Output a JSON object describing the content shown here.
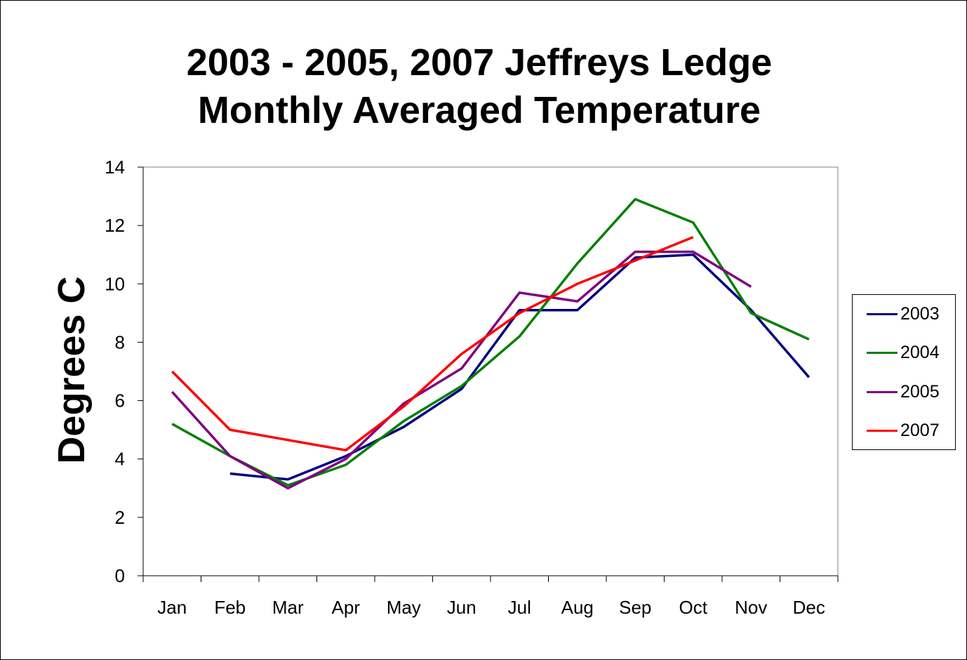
{
  "chart_data": {
    "type": "line",
    "title_line1": "2003 - 2005, 2007 Jeffreys Ledge",
    "title_line2": "Monthly Averaged Temperature",
    "xlabel": "",
    "ylabel": "Degrees C",
    "categories": [
      "Jan",
      "Feb",
      "Mar",
      "Apr",
      "May",
      "Jun",
      "Jul",
      "Aug",
      "Sep",
      "Oct",
      "Nov",
      "Dec"
    ],
    "ylim": [
      0,
      14
    ],
    "yticks": [
      "0",
      "2",
      "4",
      "6",
      "8",
      "10",
      "12",
      "14"
    ],
    "legend_position": "right",
    "series": [
      {
        "name": "2003",
        "color": "#000080",
        "values": [
          null,
          3.5,
          3.3,
          4.1,
          5.1,
          6.4,
          9.1,
          9.1,
          10.9,
          11.0,
          9.1,
          6.8
        ]
      },
      {
        "name": "2004",
        "color": "#008000",
        "values": [
          5.2,
          4.1,
          3.1,
          3.8,
          5.3,
          6.5,
          8.2,
          10.7,
          12.9,
          12.1,
          9.0,
          8.1
        ]
      },
      {
        "name": "2005",
        "color": "#800080",
        "values": [
          6.3,
          4.1,
          3.0,
          4.0,
          5.9,
          7.1,
          9.7,
          9.4,
          11.1,
          11.1,
          9.9,
          null
        ]
      },
      {
        "name": "2007",
        "color": "#ff0000",
        "values": [
          7.0,
          5.0,
          null,
          4.3,
          5.8,
          7.6,
          9.0,
          10.0,
          10.8,
          11.6,
          null,
          null
        ]
      }
    ]
  }
}
